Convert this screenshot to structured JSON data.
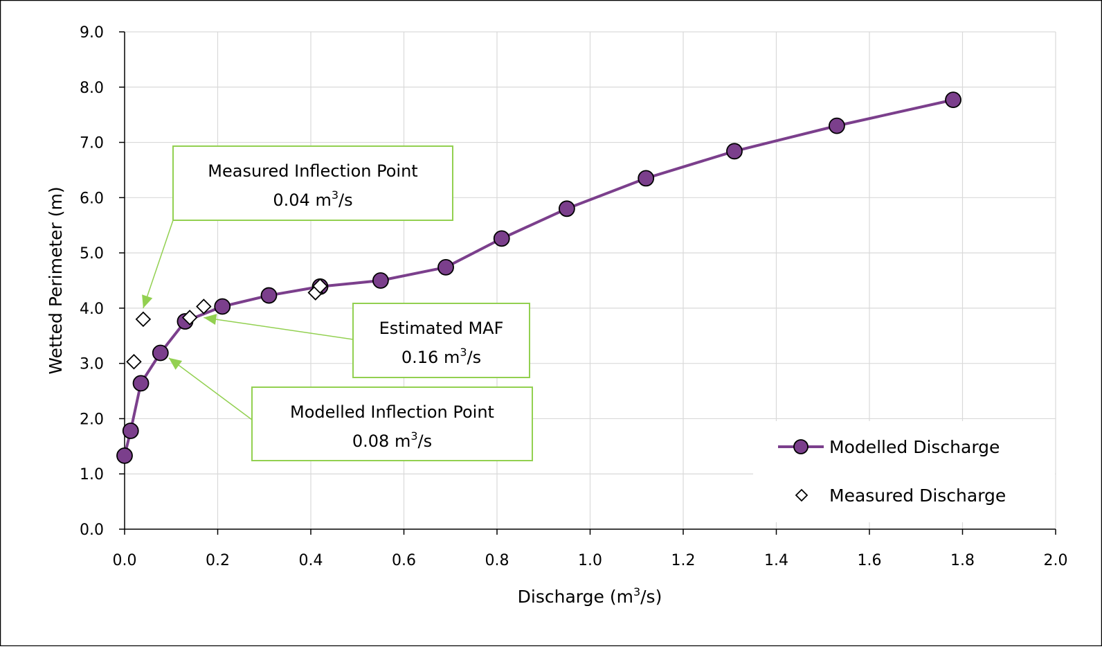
{
  "chart_data": {
    "type": "scatter",
    "xlabel": "Discharge (m³/s)",
    "ylabel": "Wetted Perimeter (m)",
    "xlim": [
      0.0,
      2.0
    ],
    "ylim": [
      0.0,
      9.0
    ],
    "x_ticks": [
      "0.0",
      "0.2",
      "0.4",
      "0.6",
      "0.8",
      "1.0",
      "1.2",
      "1.4",
      "1.6",
      "1.8",
      "2.0"
    ],
    "y_ticks": [
      "0.0",
      "1.0",
      "2.0",
      "3.0",
      "4.0",
      "5.0",
      "6.0",
      "7.0",
      "8.0",
      "9.0"
    ],
    "grid": true,
    "legend_position": "bottom-right",
    "series": [
      {
        "name": "Modelled Discharge",
        "style": "line-with-circle-markers",
        "color": "#7B3F8C",
        "x": [
          0.0,
          0.013,
          0.035,
          0.077,
          0.13,
          0.21,
          0.31,
          0.42,
          0.55,
          0.69,
          0.81,
          0.95,
          1.12,
          1.31,
          1.53,
          1.78
        ],
        "y": [
          1.33,
          1.78,
          2.64,
          3.19,
          3.76,
          4.03,
          4.23,
          4.39,
          4.5,
          4.74,
          5.26,
          5.8,
          6.35,
          6.84,
          7.3,
          7.77
        ]
      },
      {
        "name": "Measured Discharge",
        "style": "diamond-markers",
        "color": "#000000",
        "x": [
          0.02,
          0.04,
          0.14,
          0.17,
          0.41,
          0.42
        ],
        "y": [
          3.03,
          3.8,
          3.83,
          4.03,
          4.28,
          4.4
        ]
      }
    ],
    "annotations": [
      {
        "id": "measured-inflection",
        "line1": "Measured Inflection Point",
        "line2_value": "0.04 m",
        "line2_sup": "3",
        "line2_unit": "/s",
        "target": [
          0.04,
          4.0
        ]
      },
      {
        "id": "estimated-maf",
        "line1": "Estimated MAF",
        "line2_value": "0.16 m",
        "line2_sup": "3",
        "line2_unit": "/s",
        "target": [
          0.17,
          3.83
        ]
      },
      {
        "id": "modelled-inflection",
        "line1": "Modelled Inflection Point",
        "line2_value": "0.08 m",
        "line2_sup": "3",
        "line2_unit": "/s",
        "target": [
          0.095,
          3.1
        ]
      }
    ],
    "annotation_border_color": "#92D050"
  }
}
